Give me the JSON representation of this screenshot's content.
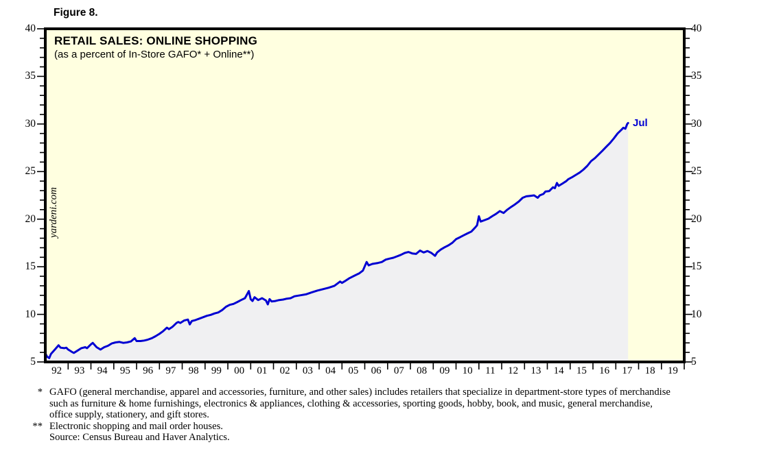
{
  "figure_label": "Figure 8.",
  "watermark": "yardeni.com",
  "colors": {
    "plot_background": "#FFFFE0",
    "area_fill": "#F0F0F2",
    "line": "#0000D2",
    "frame": "#000000",
    "label_text": "#000000"
  },
  "chart_data": {
    "type": "area",
    "title": "RETAIL SALES: ONLINE SHOPPING",
    "subtitle": "(as a percent of In-Store GAFO* + Online**)",
    "last_point_label": "Jul",
    "last_point_x": 2017.54,
    "ylim": [
      5,
      40
    ],
    "x_range": [
      1992,
      2020
    ],
    "y_ticks": [
      5,
      10,
      15,
      20,
      25,
      30,
      35,
      40
    ],
    "y_minor_tick_step": 1,
    "x_tick_labels": [
      "92",
      "93",
      "94",
      "95",
      "96",
      "97",
      "98",
      "99",
      "00",
      "01",
      "02",
      "03",
      "04",
      "05",
      "06",
      "07",
      "08",
      "09",
      "10",
      "11",
      "12",
      "13",
      "14",
      "15",
      "16",
      "17",
      "18",
      "19"
    ],
    "grid": false,
    "legend": "none",
    "points": [
      [
        1992.0,
        5.9
      ],
      [
        1992.08,
        5.55
      ],
      [
        1992.17,
        5.4
      ],
      [
        1992.25,
        5.85
      ],
      [
        1992.42,
        6.3
      ],
      [
        1992.58,
        6.75
      ],
      [
        1992.67,
        6.5
      ],
      [
        1992.83,
        6.45
      ],
      [
        1992.92,
        6.5
      ],
      [
        1993.0,
        6.3
      ],
      [
        1993.17,
        6.05
      ],
      [
        1993.25,
        5.95
      ],
      [
        1993.42,
        6.2
      ],
      [
        1993.58,
        6.45
      ],
      [
        1993.75,
        6.55
      ],
      [
        1993.83,
        6.45
      ],
      [
        1994.0,
        6.85
      ],
      [
        1994.08,
        7.0
      ],
      [
        1994.25,
        6.55
      ],
      [
        1994.42,
        6.3
      ],
      [
        1994.58,
        6.55
      ],
      [
        1994.75,
        6.7
      ],
      [
        1994.92,
        6.95
      ],
      [
        1995.08,
        7.05
      ],
      [
        1995.25,
        7.1
      ],
      [
        1995.42,
        7.0
      ],
      [
        1995.58,
        7.05
      ],
      [
        1995.75,
        7.15
      ],
      [
        1995.92,
        7.5
      ],
      [
        1996.0,
        7.2
      ],
      [
        1996.17,
        7.2
      ],
      [
        1996.33,
        7.25
      ],
      [
        1996.5,
        7.35
      ],
      [
        1996.67,
        7.5
      ],
      [
        1996.83,
        7.7
      ],
      [
        1997.0,
        7.95
      ],
      [
        1997.17,
        8.25
      ],
      [
        1997.33,
        8.6
      ],
      [
        1997.42,
        8.45
      ],
      [
        1997.58,
        8.7
      ],
      [
        1997.75,
        9.1
      ],
      [
        1997.83,
        9.2
      ],
      [
        1997.92,
        9.1
      ],
      [
        1998.08,
        9.35
      ],
      [
        1998.25,
        9.45
      ],
      [
        1998.33,
        8.95
      ],
      [
        1998.42,
        9.3
      ],
      [
        1998.58,
        9.4
      ],
      [
        1998.75,
        9.55
      ],
      [
        1998.92,
        9.7
      ],
      [
        1999.08,
        9.85
      ],
      [
        1999.25,
        9.95
      ],
      [
        1999.42,
        10.1
      ],
      [
        1999.58,
        10.2
      ],
      [
        1999.75,
        10.45
      ],
      [
        1999.92,
        10.8
      ],
      [
        2000.08,
        11.0
      ],
      [
        2000.25,
        11.1
      ],
      [
        2000.42,
        11.3
      ],
      [
        2000.58,
        11.5
      ],
      [
        2000.75,
        11.7
      ],
      [
        2000.92,
        12.45
      ],
      [
        2001.0,
        11.6
      ],
      [
        2001.08,
        11.4
      ],
      [
        2001.17,
        11.8
      ],
      [
        2001.33,
        11.5
      ],
      [
        2001.5,
        11.7
      ],
      [
        2001.67,
        11.45
      ],
      [
        2001.75,
        11.05
      ],
      [
        2001.83,
        11.6
      ],
      [
        2001.92,
        11.35
      ],
      [
        2002.08,
        11.4
      ],
      [
        2002.25,
        11.5
      ],
      [
        2002.42,
        11.55
      ],
      [
        2002.58,
        11.65
      ],
      [
        2002.75,
        11.7
      ],
      [
        2002.92,
        11.9
      ],
      [
        2003.17,
        12.0
      ],
      [
        2003.42,
        12.1
      ],
      [
        2003.67,
        12.3
      ],
      [
        2003.92,
        12.5
      ],
      [
        2004.17,
        12.65
      ],
      [
        2004.42,
        12.8
      ],
      [
        2004.67,
        13.0
      ],
      [
        2004.92,
        13.45
      ],
      [
        2005.0,
        13.3
      ],
      [
        2005.17,
        13.55
      ],
      [
        2005.33,
        13.8
      ],
      [
        2005.58,
        14.1
      ],
      [
        2005.75,
        14.3
      ],
      [
        2005.92,
        14.6
      ],
      [
        2006.08,
        15.5
      ],
      [
        2006.17,
        15.15
      ],
      [
        2006.33,
        15.3
      ],
      [
        2006.58,
        15.4
      ],
      [
        2006.75,
        15.5
      ],
      [
        2006.92,
        15.75
      ],
      [
        2007.08,
        15.85
      ],
      [
        2007.25,
        15.95
      ],
      [
        2007.42,
        16.1
      ],
      [
        2007.58,
        16.25
      ],
      [
        2007.75,
        16.45
      ],
      [
        2007.92,
        16.55
      ],
      [
        2008.08,
        16.4
      ],
      [
        2008.25,
        16.35
      ],
      [
        2008.42,
        16.7
      ],
      [
        2008.58,
        16.5
      ],
      [
        2008.75,
        16.65
      ],
      [
        2008.92,
        16.45
      ],
      [
        2009.08,
        16.15
      ],
      [
        2009.17,
        16.5
      ],
      [
        2009.33,
        16.8
      ],
      [
        2009.5,
        17.05
      ],
      [
        2009.67,
        17.25
      ],
      [
        2009.83,
        17.5
      ],
      [
        2010.0,
        17.9
      ],
      [
        2010.17,
        18.1
      ],
      [
        2010.33,
        18.3
      ],
      [
        2010.5,
        18.5
      ],
      [
        2010.67,
        18.7
      ],
      [
        2010.83,
        19.1
      ],
      [
        2010.92,
        19.35
      ],
      [
        2011.0,
        20.3
      ],
      [
        2011.08,
        19.75
      ],
      [
        2011.25,
        19.9
      ],
      [
        2011.42,
        20.05
      ],
      [
        2011.58,
        20.3
      ],
      [
        2011.75,
        20.55
      ],
      [
        2011.92,
        20.85
      ],
      [
        2012.08,
        20.65
      ],
      [
        2012.25,
        21.0
      ],
      [
        2012.42,
        21.3
      ],
      [
        2012.58,
        21.55
      ],
      [
        2012.75,
        21.85
      ],
      [
        2012.92,
        22.25
      ],
      [
        2013.08,
        22.4
      ],
      [
        2013.25,
        22.45
      ],
      [
        2013.42,
        22.5
      ],
      [
        2013.58,
        22.25
      ],
      [
        2013.67,
        22.5
      ],
      [
        2013.83,
        22.65
      ],
      [
        2013.92,
        22.9
      ],
      [
        2014.08,
        22.95
      ],
      [
        2014.25,
        23.35
      ],
      [
        2014.33,
        23.25
      ],
      [
        2014.42,
        23.8
      ],
      [
        2014.5,
        23.5
      ],
      [
        2014.67,
        23.75
      ],
      [
        2014.83,
        24.0
      ],
      [
        2014.92,
        24.2
      ],
      [
        2015.08,
        24.4
      ],
      [
        2015.25,
        24.65
      ],
      [
        2015.42,
        24.9
      ],
      [
        2015.58,
        25.2
      ],
      [
        2015.75,
        25.6
      ],
      [
        2015.92,
        26.1
      ],
      [
        2016.08,
        26.4
      ],
      [
        2016.25,
        26.8
      ],
      [
        2016.42,
        27.2
      ],
      [
        2016.58,
        27.6
      ],
      [
        2016.75,
        28.0
      ],
      [
        2016.92,
        28.5
      ],
      [
        2017.08,
        29.0
      ],
      [
        2017.25,
        29.4
      ],
      [
        2017.33,
        29.6
      ],
      [
        2017.42,
        29.5
      ],
      [
        2017.5,
        30.0
      ],
      [
        2017.54,
        30.1
      ]
    ]
  },
  "footnotes": [
    {
      "marker": "*",
      "text": "GAFO (general merchandise, apparel and accessories, furniture, and other sales) includes retailers that specialize in department-store types of merchandise"
    },
    {
      "marker": "",
      "text": "such as furniture & home furnishings, electronics & appliances, clothing & accessories, sporting goods, hobby, book, and music, general merchandise,"
    },
    {
      "marker": "",
      "text": "office supply, stationery, and gift stores."
    },
    {
      "marker": "**",
      "text": "Electronic shopping and mail order houses."
    },
    {
      "marker": "",
      "text": "Source: Census Bureau and Haver Analytics."
    }
  ]
}
